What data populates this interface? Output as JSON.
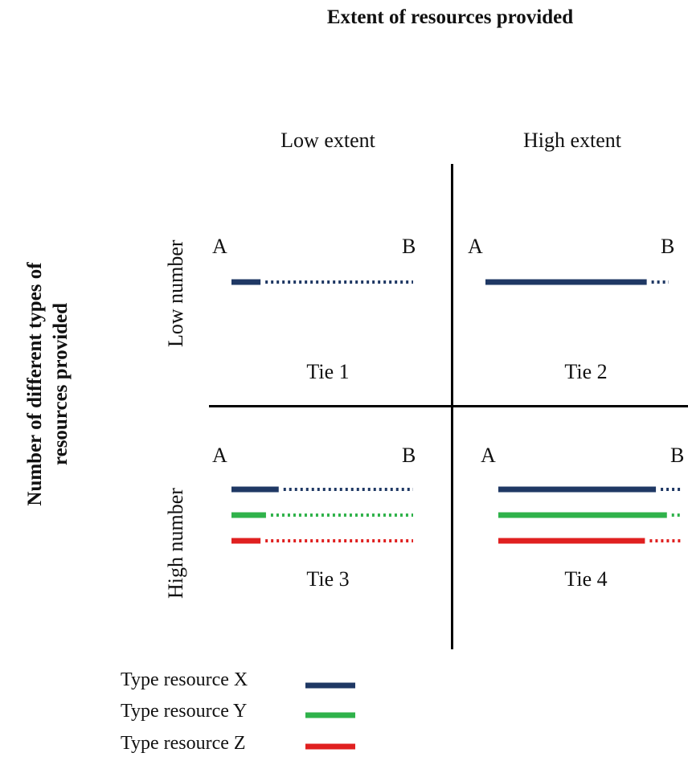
{
  "title": "Extent of resources provided",
  "columns": {
    "left": "Low extent",
    "right": "High extent"
  },
  "y_axis_title": [
    "Number of different types of",
    "resources provided"
  ],
  "rows": {
    "top": "Low number",
    "bottom": "High number"
  },
  "endpoints": {
    "start": "A",
    "end": "B"
  },
  "ties": [
    {
      "label": "Tie 1",
      "lines": [
        {
          "type": "X",
          "solid_fraction": 0.16
        }
      ]
    },
    {
      "label": "Tie 2",
      "lines": [
        {
          "type": "X",
          "solid_fraction": 0.88
        }
      ]
    },
    {
      "label": "Tie 3",
      "lines": [
        {
          "type": "X",
          "solid_fraction": 0.26
        },
        {
          "type": "Y",
          "solid_fraction": 0.19
        },
        {
          "type": "Z",
          "solid_fraction": 0.16
        }
      ]
    },
    {
      "label": "Tie 4",
      "lines": [
        {
          "type": "X",
          "solid_fraction": 0.86
        },
        {
          "type": "Y",
          "solid_fraction": 0.92
        },
        {
          "type": "Z",
          "solid_fraction": 0.8
        }
      ]
    }
  ],
  "legend": [
    {
      "type": "X",
      "label": "Type resource X",
      "color": "#1f3864"
    },
    {
      "type": "Y",
      "label": "Type resource Y",
      "color": "#2fb24a"
    },
    {
      "type": "Z",
      "label": "Type resource Z",
      "color": "#e02020"
    }
  ]
}
